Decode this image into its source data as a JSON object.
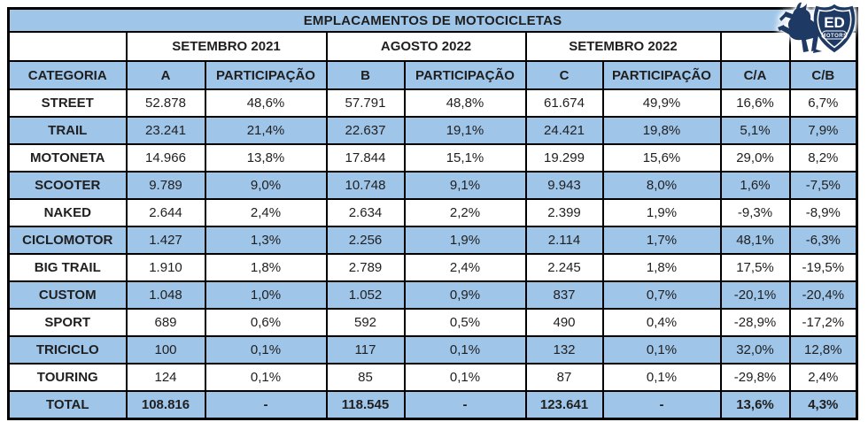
{
  "title": "EMPLACAMENTOS DE MOTOCICLETAS",
  "logo": {
    "name": "ED",
    "sub": "MOTORS"
  },
  "colors": {
    "row_blue": "#9fc5e9",
    "border_black": "#000000",
    "logo_navy": "#1e3a64",
    "text_dark": "#1f1f1f"
  },
  "table": {
    "period_headers": [
      "SETEMBRO 2021",
      "AGOSTO 2022",
      "SETEMBRO 2022"
    ],
    "column_headers": [
      "CATEGORIA",
      "A",
      "PARTICIPAÇÃO",
      "B",
      "PARTICIPAÇÃO",
      "C",
      "PARTICIPAÇÃO",
      "C/A",
      "C/B"
    ],
    "rows": [
      {
        "category": "STREET",
        "values": [
          "52.878",
          "48,6%",
          "57.791",
          "48,8%",
          "61.674",
          "49,9%",
          "16,6%",
          "6,7%"
        ]
      },
      {
        "category": "TRAIL",
        "values": [
          "23.241",
          "21,4%",
          "22.637",
          "19,1%",
          "24.421",
          "19,8%",
          "5,1%",
          "7,9%"
        ]
      },
      {
        "category": "MOTONETA",
        "values": [
          "14.966",
          "13,8%",
          "17.844",
          "15,1%",
          "19.299",
          "15,6%",
          "29,0%",
          "8,2%"
        ]
      },
      {
        "category": "SCOOTER",
        "values": [
          "9.789",
          "9,0%",
          "10.748",
          "9,1%",
          "9.943",
          "8,0%",
          "1,6%",
          "-7,5%"
        ]
      },
      {
        "category": "NAKED",
        "values": [
          "2.644",
          "2,4%",
          "2.634",
          "2,2%",
          "2.399",
          "1,9%",
          "-9,3%",
          "-8,9%"
        ]
      },
      {
        "category": "CICLOMOTOR",
        "values": [
          "1.427",
          "1,3%",
          "2.256",
          "1,9%",
          "2.114",
          "1,7%",
          "48,1%",
          "-6,3%"
        ]
      },
      {
        "category": "BIG TRAIL",
        "values": [
          "1.910",
          "1,8%",
          "2.789",
          "2,4%",
          "2.245",
          "1,8%",
          "17,5%",
          "-19,5%"
        ]
      },
      {
        "category": "CUSTOM",
        "values": [
          "1.048",
          "1,0%",
          "1.052",
          "0,9%",
          "837",
          "0,7%",
          "-20,1%",
          "-20,4%"
        ]
      },
      {
        "category": "SPORT",
        "values": [
          "689",
          "0,6%",
          "592",
          "0,5%",
          "490",
          "0,4%",
          "-28,9%",
          "-17,2%"
        ]
      },
      {
        "category": "TRICICLO",
        "values": [
          "100",
          "0,1%",
          "117",
          "0,1%",
          "132",
          "0,1%",
          "32,0%",
          "12,8%"
        ]
      },
      {
        "category": "TOURING",
        "values": [
          "124",
          "0,1%",
          "85",
          "0,1%",
          "87",
          "0,1%",
          "-29,8%",
          "2,4%"
        ]
      },
      {
        "category": "TOTAL",
        "values": [
          "108.816",
          "-",
          "118.545",
          "-",
          "123.641",
          "-",
          "13,6%",
          "4,3%"
        ],
        "bold": true
      }
    ]
  },
  "chart_data": {
    "type": "table",
    "title": "EMPLACAMENTOS DE MOTOCICLETAS",
    "columns": [
      "CATEGORIA",
      "A (SETEMBRO 2021)",
      "PARTICIPAÇÃO A",
      "B (AGOSTO 2022)",
      "PARTICIPAÇÃO B",
      "C (SETEMBRO 2022)",
      "PARTICIPAÇÃO C",
      "C/A",
      "C/B"
    ],
    "rows": [
      [
        "STREET",
        "52.878",
        "48,6%",
        "57.791",
        "48,8%",
        "61.674",
        "49,9%",
        "16,6%",
        "6,7%"
      ],
      [
        "TRAIL",
        "23.241",
        "21,4%",
        "22.637",
        "19,1%",
        "24.421",
        "19,8%",
        "5,1%",
        "7,9%"
      ],
      [
        "MOTONETA",
        "14.966",
        "13,8%",
        "17.844",
        "15,1%",
        "19.299",
        "15,6%",
        "29,0%",
        "8,2%"
      ],
      [
        "SCOOTER",
        "9.789",
        "9,0%",
        "10.748",
        "9,1%",
        "9.943",
        "8,0%",
        "1,6%",
        "-7,5%"
      ],
      [
        "NAKED",
        "2.644",
        "2,4%",
        "2.634",
        "2,2%",
        "2.399",
        "1,9%",
        "-9,3%",
        "-8,9%"
      ],
      [
        "CICLOMOTOR",
        "1.427",
        "1,3%",
        "2.256",
        "1,9%",
        "2.114",
        "1,7%",
        "48,1%",
        "-6,3%"
      ],
      [
        "BIG TRAIL",
        "1.910",
        "1,8%",
        "2.789",
        "2,4%",
        "2.245",
        "1,8%",
        "17,5%",
        "-19,5%"
      ],
      [
        "CUSTOM",
        "1.048",
        "1,0%",
        "1.052",
        "0,9%",
        "837",
        "0,7%",
        "-20,1%",
        "-20,4%"
      ],
      [
        "SPORT",
        "689",
        "0,6%",
        "592",
        "0,5%",
        "490",
        "0,4%",
        "-28,9%",
        "-17,2%"
      ],
      [
        "TRICICLO",
        "100",
        "0,1%",
        "117",
        "0,1%",
        "132",
        "0,1%",
        "32,0%",
        "12,8%"
      ],
      [
        "TOURING",
        "124",
        "0,1%",
        "85",
        "0,1%",
        "87",
        "0,1%",
        "-29,8%",
        "2,4%"
      ],
      [
        "TOTAL",
        "108.816",
        "-",
        "118.545",
        "-",
        "123.641",
        "-",
        "13,6%",
        "4,3%"
      ]
    ]
  }
}
